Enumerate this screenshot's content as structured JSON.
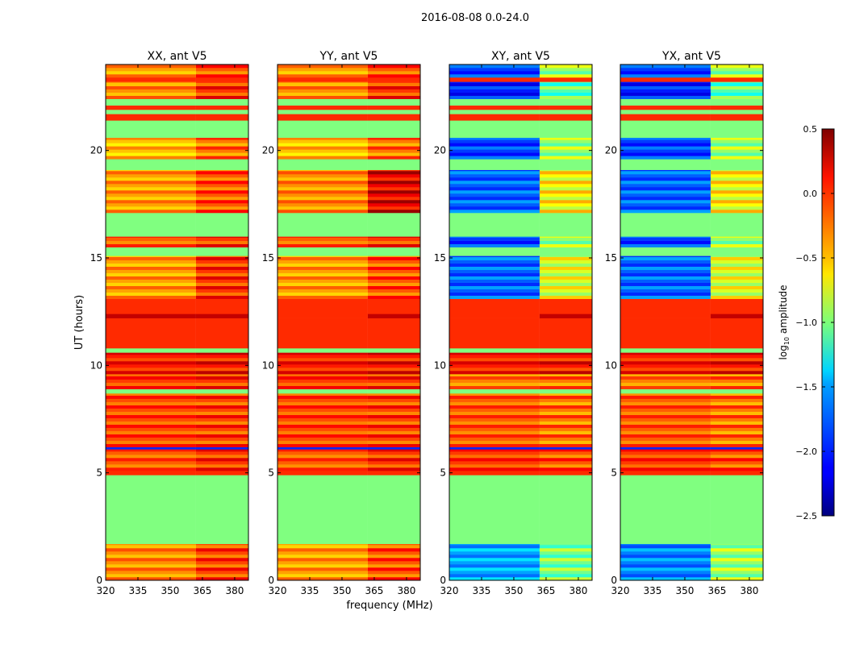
{
  "chart_data": {
    "type": "heatmap",
    "title": "2016-08-08 0.0-24.0",
    "xlabel": "frequency (MHz)",
    "ylabel": "UT (hours)",
    "colorbar_label": "log10 amplitude",
    "colorbar_label_parts": {
      "pre": "log",
      "sub": "10",
      "post": " amplitude"
    },
    "colormap": "jet",
    "clim": [
      -2.5,
      0.5
    ],
    "colorbar_ticks": [
      "0.5",
      "0.0",
      "−0.5",
      "−1.0",
      "−1.5",
      "−2.0",
      "−2.5"
    ],
    "colorbar_tick_values": [
      0.5,
      0.0,
      -0.5,
      -1.0,
      -1.5,
      -2.0,
      -2.5
    ],
    "xlim": [
      320,
      386.4
    ],
    "ylim": [
      0,
      24
    ],
    "xticks": [
      320,
      335,
      350,
      365,
      380
    ],
    "yticks": [
      0,
      5,
      10,
      15,
      20
    ],
    "freq_split": 362,
    "panels": [
      {
        "title": "XX, ant V5"
      },
      {
        "title": "YY, ant V5"
      },
      {
        "title": "XY, ant V5"
      },
      {
        "title": "YX, ant V5"
      }
    ],
    "bands_note": "values per band: [XX_low, XX_high, YY_low, YY_high, XY_low, XY_high, YX_low, YX_high] in log10 amplitude; low = below freq_split, high = above",
    "bands": [
      {
        "ut": [
          0,
          1.7
        ],
        "v": [
          -0.35,
          -0.15,
          -0.4,
          -0.2,
          -1.7,
          -1.1,
          -1.8,
          -1.0
        ],
        "stripe": true
      },
      {
        "ut": [
          1.7,
          4.9
        ],
        "v": [
          -1,
          -1,
          -1,
          -1,
          -1,
          -1,
          -1,
          -1
        ],
        "stripe": false
      },
      {
        "ut": [
          4.9,
          5.1
        ],
        "v": [
          0,
          0,
          0,
          0,
          0,
          0,
          0,
          0
        ],
        "stripe": false
      },
      {
        "ut": [
          5.1,
          6.1
        ],
        "v": [
          -0.2,
          -0.1,
          -0.2,
          -0.1,
          -0.1,
          -0.2,
          -0.1,
          -0.2
        ],
        "stripe": true
      },
      {
        "ut": [
          6.1,
          6.2
        ],
        "v": [
          -2,
          -2,
          -2,
          -2,
          -2,
          -2,
          -2,
          -2
        ],
        "stripe": false
      },
      {
        "ut": [
          6.2,
          8.7
        ],
        "v": [
          -0.15,
          -0.15,
          -0.15,
          -0.15,
          -0.2,
          -0.3,
          -0.2,
          -0.3
        ],
        "stripe": true
      },
      {
        "ut": [
          8.7,
          8.9
        ],
        "v": [
          -1,
          -1,
          -1,
          -1,
          -1,
          -1,
          -1,
          -1
        ],
        "stripe": false
      },
      {
        "ut": [
          8.9,
          9.6
        ],
        "v": [
          -0.1,
          -0.1,
          -0.1,
          -0.1,
          -0.3,
          -0.3,
          -0.3,
          -0.3
        ],
        "stripe": true
      },
      {
        "ut": [
          9.6,
          10.6
        ],
        "v": [
          0,
          0,
          0,
          0,
          0,
          0,
          0,
          0
        ],
        "stripe": true
      },
      {
        "ut": [
          10.6,
          10.8
        ],
        "v": [
          -1,
          -1,
          -1,
          -1,
          -1,
          -1,
          -1,
          -1
        ],
        "stripe": false
      },
      {
        "ut": [
          10.8,
          12.2
        ],
        "v": [
          0,
          0,
          0,
          0,
          0,
          0,
          0,
          0
        ],
        "stripe": false
      },
      {
        "ut": [
          12.2,
          12.4
        ],
        "v": [
          0.3,
          0.3,
          0,
          0.3,
          0,
          0.3,
          0,
          0.3
        ],
        "stripe": false
      },
      {
        "ut": [
          12.4,
          13.1
        ],
        "v": [
          0,
          0,
          0,
          0,
          0,
          0,
          0,
          0
        ],
        "stripe": false
      },
      {
        "ut": [
          13.1,
          15.1
        ],
        "v": [
          -0.4,
          -0.1,
          -0.4,
          -0.2,
          -1.9,
          -0.8,
          -1.9,
          -0.8
        ],
        "stripe": true
      },
      {
        "ut": [
          15.1,
          15.5
        ],
        "v": [
          -1,
          -1,
          -1,
          -1,
          -1,
          -1,
          -1,
          -1
        ],
        "stripe": false
      },
      {
        "ut": [
          15.5,
          16.0
        ],
        "v": [
          -0.2,
          -0.1,
          -0.2,
          -0.1,
          -2.0,
          -1.0,
          -2.0,
          -1.0
        ],
        "stripe": true
      },
      {
        "ut": [
          16.0,
          17.1
        ],
        "v": [
          -1,
          -1,
          -1,
          -1,
          -1,
          -1,
          -1,
          -1
        ],
        "stripe": false
      },
      {
        "ut": [
          17.1,
          19.1
        ],
        "v": [
          -0.4,
          -0.2,
          -0.35,
          0.1,
          -1.9,
          -0.7,
          -1.9,
          -0.7
        ],
        "stripe": true
      },
      {
        "ut": [
          19.1,
          19.6
        ],
        "v": [
          -1,
          -1,
          -1,
          -1,
          -1,
          -1,
          -1,
          -1
        ],
        "stripe": false
      },
      {
        "ut": [
          19.6,
          20.6
        ],
        "v": [
          -0.5,
          -0.3,
          -0.5,
          -0.3,
          -2.0,
          -1.0,
          -2.0,
          -1.0
        ],
        "stripe": true
      },
      {
        "ut": [
          20.6,
          21.4
        ],
        "v": [
          -1,
          -1,
          -1,
          -1,
          -1,
          -1,
          -1,
          -1
        ],
        "stripe": false
      },
      {
        "ut": [
          21.4,
          21.7
        ],
        "v": [
          0,
          0,
          0,
          0,
          0,
          0,
          0,
          0
        ],
        "stripe": false
      },
      {
        "ut": [
          21.7,
          21.9
        ],
        "v": [
          -1,
          -1,
          -1,
          -1,
          -1,
          -1,
          -1,
          -1
        ],
        "stripe": false
      },
      {
        "ut": [
          21.9,
          22.1
        ],
        "v": [
          0,
          0,
          0,
          0,
          0,
          0,
          0,
          0
        ],
        "stripe": false
      },
      {
        "ut": [
          22.1,
          22.4
        ],
        "v": [
          -1,
          -1,
          -1,
          -1,
          -1,
          -1,
          -1,
          -1
        ],
        "stripe": false
      },
      {
        "ut": [
          22.4,
          23.2
        ],
        "v": [
          -0.35,
          -0.1,
          -0.35,
          -0.1,
          -2.1,
          -1.2,
          -2.1,
          -1.2
        ],
        "stripe": true
      },
      {
        "ut": [
          23.2,
          23.4
        ],
        "v": [
          0,
          0,
          0,
          0,
          0,
          0,
          0,
          0
        ],
        "stripe": false
      },
      {
        "ut": [
          23.4,
          24
        ],
        "v": [
          -0.4,
          -0.2,
          -0.4,
          -0.2,
          -2.0,
          -1.0,
          -2.0,
          -1.0
        ],
        "stripe": true
      }
    ]
  }
}
